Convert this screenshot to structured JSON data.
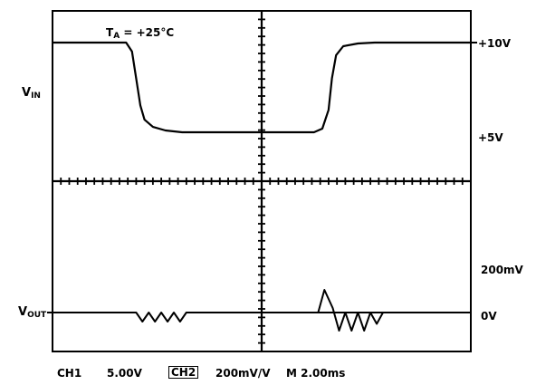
{
  "chart_data": {
    "type": "line",
    "title": "",
    "annotation": {
      "text": "T",
      "sub": "A",
      "rest": " = +25°C"
    },
    "x_divisions": 10,
    "y_divisions": 8,
    "xlim": [
      0,
      10
    ],
    "series": [
      {
        "key": "vin",
        "label_main": "V",
        "label_sub": "IN",
        "y_unit": "V",
        "ylim_div": [
          -10,
          10
        ],
        "points": [
          [
            0.0,
            10.0
          ],
          [
            1.76,
            10.0
          ],
          [
            1.9,
            9.0
          ],
          [
            2.0,
            6.0
          ],
          [
            2.1,
            3.0
          ],
          [
            2.2,
            1.4
          ],
          [
            2.4,
            0.6
          ],
          [
            2.7,
            0.2
          ],
          [
            3.1,
            0.0
          ],
          [
            6.25,
            0.0
          ],
          [
            6.45,
            0.4
          ],
          [
            6.6,
            2.5
          ],
          [
            6.68,
            6.0
          ],
          [
            6.78,
            8.6
          ],
          [
            6.95,
            9.6
          ],
          [
            7.3,
            9.9
          ],
          [
            7.7,
            10.0
          ],
          [
            10.0,
            10.0
          ]
        ],
        "level_labels": [
          {
            "value": 10,
            "text": "+10V"
          },
          {
            "value": 0,
            "text": "+5V"
          }
        ]
      },
      {
        "key": "vout",
        "label_main": "V",
        "label_sub": "OUT",
        "y_unit": "mV",
        "points": [
          [
            0.0,
            0
          ],
          [
            2.0,
            0
          ],
          [
            2.15,
            -40
          ],
          [
            2.3,
            0
          ],
          [
            2.45,
            -40
          ],
          [
            2.6,
            0
          ],
          [
            2.75,
            -40
          ],
          [
            2.9,
            0
          ],
          [
            3.05,
            -40
          ],
          [
            3.2,
            0
          ],
          [
            10.0,
            0
          ]
        ],
        "spike": [
          [
            6.2,
            0
          ],
          [
            6.35,
            0
          ],
          [
            6.5,
            100
          ],
          [
            6.7,
            20
          ],
          [
            6.85,
            -80
          ],
          [
            7.0,
            0
          ],
          [
            7.15,
            -80
          ],
          [
            7.3,
            0
          ],
          [
            7.45,
            -80
          ],
          [
            7.6,
            0
          ],
          [
            7.75,
            -50
          ],
          [
            7.9,
            0
          ]
        ],
        "level_labels": [
          {
            "value": 0,
            "text": "0V"
          }
        ],
        "scale_label": "200mV"
      }
    ],
    "bottom_labels": {
      "ch1": "CH1",
      "ch1_scale": "5.00V",
      "ch2": "CH2",
      "ch2_scale": "200mV/V",
      "timebase": "M 2.00ms"
    }
  }
}
